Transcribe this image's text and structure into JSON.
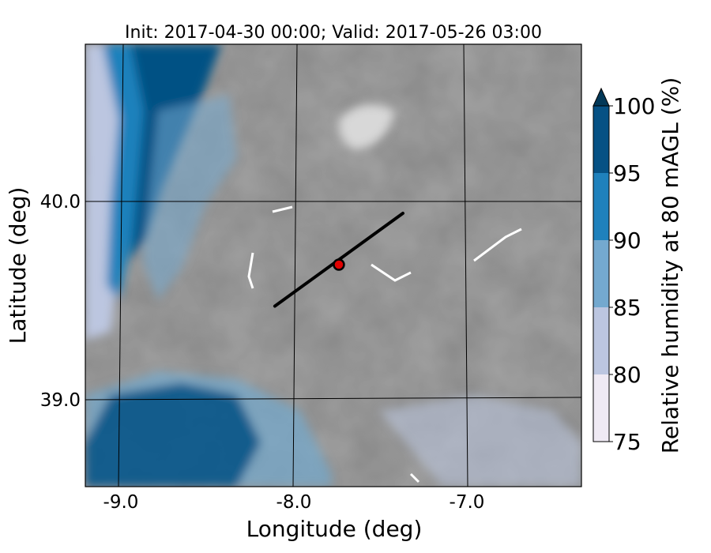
{
  "chart_data": {
    "type": "heatmap",
    "title": "Init: 2017-04-30 00:00; Valid: 2017-05-26 03:00",
    "xlabel": "Longitude (deg)",
    "ylabel": "Latitude (deg)",
    "x_ticks": [
      "-9.0",
      "-8.0",
      "-7.0"
    ],
    "y_ticks": [
      "40.0",
      "39.0"
    ],
    "colorbar": {
      "label": "Relative humidity at 80 mAGL (%)",
      "ticks": [
        "75",
        "80",
        "85",
        "90",
        "95",
        "100"
      ],
      "levels": [
        75,
        80,
        85,
        90,
        95,
        100
      ],
      "extend": "max",
      "colors": [
        "#efeaf4",
        "#bcc6e0",
        "#74a9cf",
        "#1f81bc",
        "#065184",
        "#023858"
      ]
    },
    "masked_fill_color": "#8c8c8c",
    "transect": {
      "start": {
        "lon": -8.11,
        "lat": 39.47
      },
      "end": {
        "lon": -7.37,
        "lat": 39.94
      }
    },
    "site_marker": {
      "lon": -7.74,
      "lat": 39.68,
      "color": "#e00000"
    }
  }
}
